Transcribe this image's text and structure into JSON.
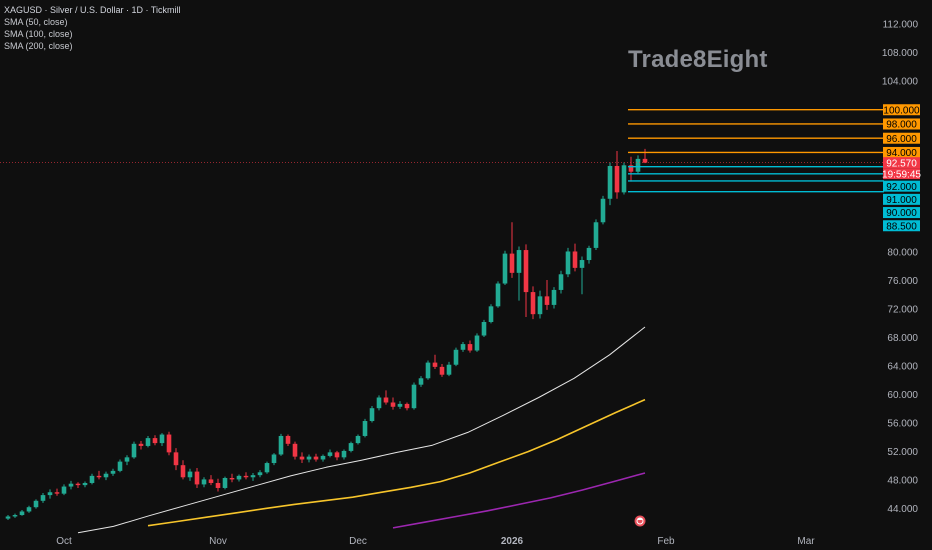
{
  "header": {
    "symbol_line": "XAGUSD · Silver / U.S. Dollar · 1D · Tickmill",
    "indicators": [
      "SMA (50, close)",
      "SMA (100, close)",
      "SMA (200, close)"
    ]
  },
  "watermark": "Trade8Eight",
  "colors": {
    "background": "#0f0f0f",
    "up": "#22ab94",
    "down": "#f23645",
    "sma50": "#e6e6e6",
    "sma100": "#f7c52b",
    "sma200": "#9c27b0",
    "resistance": "#ff9800",
    "support": "#00bcd4",
    "price_tag": "#f23645"
  },
  "chart_data": {
    "type": "candlestick",
    "title": "",
    "ylim": [
      41,
      114
    ],
    "y_ticks": [
      "112.000",
      "108.000",
      "104.000",
      "80.000",
      "76.000",
      "72.000",
      "68.000",
      "64.000",
      "60.000",
      "56.000",
      "52.000",
      "48.000",
      "44.000"
    ],
    "x_ticks": [
      {
        "label": "Oct",
        "index": 8,
        "bold": false
      },
      {
        "label": "Nov",
        "index": 30,
        "bold": false
      },
      {
        "label": "Dec",
        "index": 50,
        "bold": false
      },
      {
        "label": "2026",
        "index": 72,
        "bold": true
      },
      {
        "label": "Feb",
        "index": 94,
        "bold": false
      },
      {
        "label": "Mar",
        "index": 114,
        "bold": false
      }
    ],
    "candles": [
      [
        42.6,
        43.1,
        42.4,
        42.9
      ],
      [
        42.9,
        43.3,
        42.7,
        43.1
      ],
      [
        43.1,
        43.8,
        43.0,
        43.6
      ],
      [
        43.6,
        44.4,
        43.4,
        44.2
      ],
      [
        44.2,
        45.3,
        44.0,
        45.1
      ],
      [
        45.1,
        46.2,
        44.8,
        45.9
      ],
      [
        45.9,
        46.7,
        45.4,
        46.3
      ],
      [
        46.3,
        46.8,
        45.8,
        46.1
      ],
      [
        46.1,
        47.4,
        45.9,
        47.1
      ],
      [
        47.1,
        47.9,
        46.7,
        47.5
      ],
      [
        47.5,
        47.7,
        46.9,
        47.3
      ],
      [
        47.3,
        47.8,
        47.0,
        47.6
      ],
      [
        47.6,
        48.9,
        47.4,
        48.6
      ],
      [
        48.6,
        49.3,
        48.1,
        48.4
      ],
      [
        48.4,
        49.2,
        48.0,
        48.9
      ],
      [
        48.9,
        49.6,
        48.6,
        49.3
      ],
      [
        49.3,
        50.9,
        49.1,
        50.6
      ],
      [
        50.6,
        51.5,
        50.1,
        51.2
      ],
      [
        51.2,
        53.4,
        51.0,
        53.1
      ],
      [
        53.1,
        53.5,
        52.3,
        52.8
      ],
      [
        52.8,
        54.2,
        52.6,
        53.9
      ],
      [
        53.9,
        54.3,
        52.9,
        53.2
      ],
      [
        53.2,
        54.6,
        52.8,
        54.4
      ],
      [
        54.4,
        54.8,
        51.5,
        51.9
      ],
      [
        51.9,
        52.5,
        49.4,
        50.1
      ],
      [
        50.1,
        50.8,
        48.1,
        48.4
      ],
      [
        48.4,
        49.6,
        47.9,
        49.2
      ],
      [
        49.2,
        49.7,
        46.9,
        47.4
      ],
      [
        47.4,
        48.4,
        47.0,
        48.1
      ],
      [
        48.1,
        48.7,
        47.3,
        47.6
      ],
      [
        47.6,
        48.2,
        46.4,
        46.9
      ],
      [
        46.9,
        48.5,
        46.7,
        48.3
      ],
      [
        48.3,
        48.9,
        47.7,
        48.1
      ],
      [
        48.1,
        48.8,
        47.8,
        48.6
      ],
      [
        48.6,
        49.1,
        48.1,
        48.4
      ],
      [
        48.4,
        49.0,
        47.9,
        48.7
      ],
      [
        48.7,
        49.4,
        48.4,
        49.1
      ],
      [
        49.1,
        50.6,
        48.9,
        50.4
      ],
      [
        50.4,
        51.8,
        50.1,
        51.6
      ],
      [
        51.6,
        54.5,
        51.4,
        54.2
      ],
      [
        54.2,
        54.4,
        52.8,
        53.1
      ],
      [
        53.1,
        53.4,
        50.9,
        51.3
      ],
      [
        51.3,
        51.9,
        50.4,
        50.9
      ],
      [
        50.9,
        51.6,
        50.5,
        51.3
      ],
      [
        51.3,
        51.7,
        50.6,
        50.9
      ],
      [
        50.9,
        51.6,
        50.6,
        51.4
      ],
      [
        51.4,
        52.3,
        51.2,
        51.9
      ],
      [
        51.9,
        52.1,
        50.8,
        51.2
      ],
      [
        51.2,
        52.3,
        50.9,
        52.1
      ],
      [
        52.1,
        53.4,
        51.9,
        53.2
      ],
      [
        53.2,
        54.4,
        53.0,
        54.2
      ],
      [
        54.2,
        56.6,
        54.0,
        56.3
      ],
      [
        56.3,
        58.4,
        56.1,
        58.1
      ],
      [
        58.1,
        59.9,
        57.8,
        59.6
      ],
      [
        59.6,
        60.6,
        58.6,
        58.9
      ],
      [
        58.9,
        59.6,
        57.9,
        58.3
      ],
      [
        58.3,
        59.1,
        58.0,
        58.7
      ],
      [
        58.7,
        58.9,
        57.8,
        58.1
      ],
      [
        58.1,
        61.7,
        57.9,
        61.4
      ],
      [
        61.4,
        62.6,
        61.1,
        62.3
      ],
      [
        62.3,
        64.8,
        62.1,
        64.5
      ],
      [
        64.5,
        65.6,
        63.6,
        63.9
      ],
      [
        63.9,
        64.3,
        62.5,
        62.8
      ],
      [
        62.8,
        64.6,
        62.6,
        64.2
      ],
      [
        64.2,
        66.6,
        64.0,
        66.3
      ],
      [
        66.3,
        67.4,
        66.0,
        67.1
      ],
      [
        67.1,
        67.6,
        65.9,
        66.2
      ],
      [
        66.2,
        68.6,
        66.0,
        68.3
      ],
      [
        68.3,
        70.5,
        68.1,
        70.2
      ],
      [
        70.2,
        72.7,
        70.0,
        72.4
      ],
      [
        72.4,
        75.9,
        72.2,
        75.6
      ],
      [
        75.6,
        80.2,
        75.4,
        79.8
      ],
      [
        79.8,
        84.2,
        76.4,
        77.1
      ],
      [
        77.1,
        80.8,
        73.2,
        80.3
      ],
      [
        80.3,
        81.1,
        70.9,
        74.4
      ],
      [
        74.4,
        75.2,
        70.6,
        71.3
      ],
      [
        71.3,
        74.6,
        70.7,
        73.8
      ],
      [
        73.8,
        76.1,
        71.9,
        72.6
      ],
      [
        72.6,
        75.1,
        72.1,
        74.7
      ],
      [
        74.7,
        77.4,
        74.2,
        76.9
      ],
      [
        76.9,
        80.6,
        76.5,
        80.1
      ],
      [
        80.1,
        81.2,
        77.3,
        77.8
      ],
      [
        77.8,
        79.4,
        74.1,
        78.9
      ],
      [
        78.9,
        80.9,
        78.4,
        80.6
      ],
      [
        80.6,
        84.6,
        80.3,
        84.2
      ],
      [
        84.2,
        87.9,
        83.9,
        87.5
      ],
      [
        87.5,
        92.6,
        86.6,
        92.1
      ],
      [
        92.1,
        94.2,
        87.5,
        88.4
      ],
      [
        88.4,
        92.6,
        88.1,
        92.2
      ],
      [
        92.2,
        93.4,
        89.9,
        91.3
      ],
      [
        91.3,
        93.6,
        91.0,
        93.1
      ],
      [
        93.1,
        94.5,
        92.5,
        92.57
      ]
    ],
    "sma": [
      {
        "period": 50,
        "start_index": 10,
        "values": [
          40.6,
          41.5,
          43.0,
          44.4,
          45.8,
          47.2,
          48.6,
          49.8,
          50.8,
          51.9,
          52.9,
          54.7,
          57.1,
          59.6,
          62.3,
          65.6,
          69.5
        ]
      },
      {
        "period": 100,
        "start_index": 20,
        "values": [
          41.6,
          42.2,
          42.8,
          43.4,
          44.0,
          44.6,
          45.1,
          45.6,
          46.3,
          47.0,
          47.8,
          49.0,
          50.5,
          52.0,
          53.7,
          55.6,
          57.5,
          59.3
        ]
      },
      {
        "period": 200,
        "start_index": 55,
        "values": [
          41.3,
          42.1,
          42.9,
          43.7,
          44.6,
          45.5,
          46.6,
          47.8,
          49.0
        ]
      }
    ],
    "levels": {
      "resistance": [
        "100.000",
        "98.000",
        "96.000",
        "94.000"
      ],
      "support": [
        "92.000",
        "91.000",
        "90.000",
        "88.500"
      ]
    },
    "current_price": "92.570",
    "countdown": "19:59:45"
  }
}
